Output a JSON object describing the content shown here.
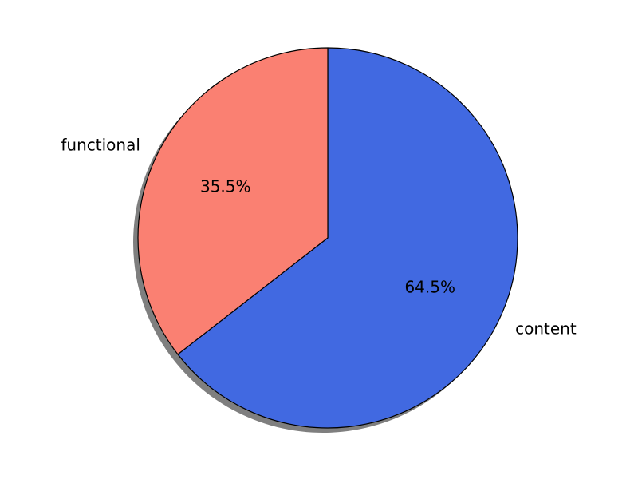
{
  "chart_data": {
    "type": "pie",
    "categories": [
      "content",
      "functional"
    ],
    "values": [
      64.5,
      35.5
    ],
    "percent_labels": [
      "64.5%",
      "35.5%"
    ],
    "colors": [
      "#4169e1",
      "#fa8072"
    ],
    "start_angle_deg": 90,
    "direction": "clockwise",
    "shadow": true,
    "edge_color": "#000000"
  }
}
